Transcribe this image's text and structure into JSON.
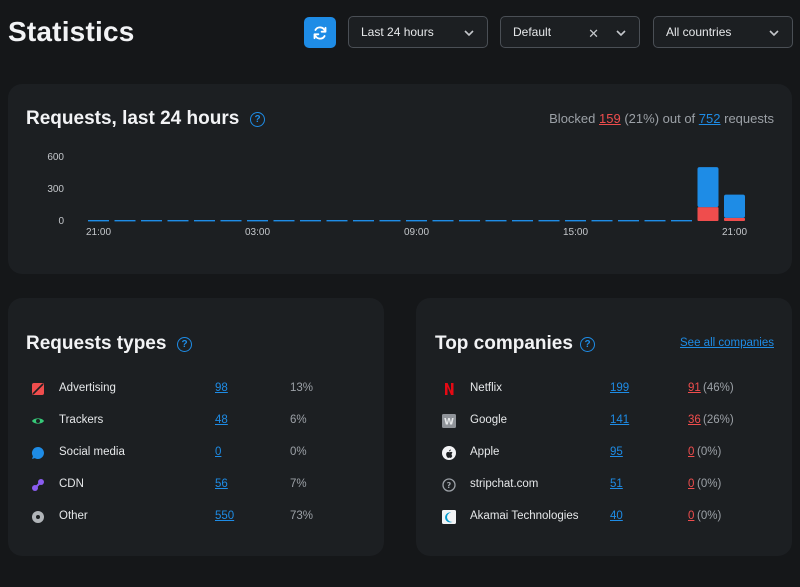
{
  "header": {
    "title": "Statistics",
    "time_range": "Last 24 hours",
    "profile": "Default",
    "country": "All countries"
  },
  "requests_card": {
    "title": "Requests, last 24 hours",
    "blocked_label": "Blocked",
    "blocked_count": "159",
    "blocked_pct": "(21%) out of",
    "total_count": "752",
    "total_label": "requests"
  },
  "chart_data": {
    "type": "bar",
    "stacked": true,
    "y_ticks": [
      "600",
      "300",
      "0"
    ],
    "ylim": [
      0,
      600
    ],
    "x_tick_labels": [
      "21:00",
      "03:00",
      "09:00",
      "15:00",
      "21:00"
    ],
    "x_tick_hours": [
      0,
      6,
      12,
      18,
      24
    ],
    "hours": 25,
    "series": [
      {
        "key": "blocked",
        "color": "#ef4d4d",
        "values": [
          0,
          0,
          0,
          0,
          0,
          0,
          0,
          0,
          0,
          0,
          0,
          0,
          0,
          0,
          0,
          0,
          0,
          0,
          0,
          0,
          0,
          0,
          0,
          130,
          29
        ]
      },
      {
        "key": "allowed",
        "color": "#1e8ce6",
        "values": [
          0,
          0,
          0,
          0,
          0,
          0,
          0,
          0,
          0,
          0,
          0,
          0,
          0,
          0,
          0,
          0,
          0,
          0,
          0,
          0,
          0,
          0,
          0,
          375,
          218
        ]
      }
    ]
  },
  "types_card": {
    "title": "Requests types",
    "rows": [
      {
        "name": "Advertising",
        "count": "98",
        "pct": "13%",
        "icon": "advertising-icon",
        "color": "#ef4d4d"
      },
      {
        "name": "Trackers",
        "count": "48",
        "pct": "6%",
        "icon": "eye-icon",
        "color": "#36c878"
      },
      {
        "name": "Social media",
        "count": "0",
        "pct": "0%",
        "icon": "chat-bubble-icon",
        "color": "#1e8ce6"
      },
      {
        "name": "CDN",
        "count": "56",
        "pct": "7%",
        "icon": "cdn-icon",
        "color": "#8a5cf0"
      },
      {
        "name": "Other",
        "count": "550",
        "pct": "73%",
        "icon": "disc-icon",
        "color": "#b0b4b8"
      }
    ]
  },
  "companies_card": {
    "title": "Top companies",
    "see_all": "See all companies",
    "rows": [
      {
        "name": "Netflix",
        "count": "199",
        "blocked": "91",
        "blocked_pct": "(46%)",
        "icon": "netflix-logo-icon"
      },
      {
        "name": "Google",
        "count": "141",
        "blocked": "36",
        "blocked_pct": "(26%)",
        "icon": "google-logo-icon"
      },
      {
        "name": "Apple",
        "count": "95",
        "blocked": "0",
        "blocked_pct": "(0%)",
        "icon": "apple-logo-icon"
      },
      {
        "name": "stripchat.com",
        "count": "51",
        "blocked": "0",
        "blocked_pct": "(0%)",
        "icon": "question-circle-icon"
      },
      {
        "name": "Akamai Technologies",
        "count": "40",
        "blocked": "0",
        "blocked_pct": "(0%)",
        "icon": "akamai-logo-icon"
      }
    ]
  }
}
